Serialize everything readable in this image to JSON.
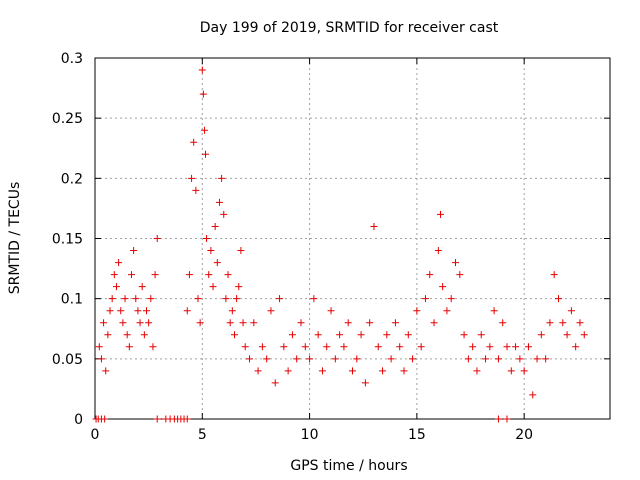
{
  "chart_data": {
    "type": "scatter",
    "title": "Day 199 of 2019, SRMTID for receiver cast",
    "xlabel": "GPS time / hours",
    "ylabel": "SRMTID / TECUs",
    "xlim": [
      0,
      24
    ],
    "ylim": [
      0,
      0.3
    ],
    "x_ticks": [
      0,
      5,
      10,
      15,
      20
    ],
    "y_ticks": [
      0,
      0.05,
      0.1,
      0.15,
      0.2,
      0.25,
      0.3
    ],
    "x_tick_labels": [
      "0",
      "5",
      "10",
      "15",
      "20"
    ],
    "y_tick_labels": [
      "0",
      "0.05",
      "0.1",
      "0.15",
      "0.2",
      "0.25",
      "0.3"
    ],
    "grid": true,
    "marker": "plus",
    "color": "#e60000",
    "series": [
      {
        "name": "SRMTID",
        "points": [
          [
            0.05,
            0
          ],
          [
            0.15,
            0
          ],
          [
            0.3,
            0
          ],
          [
            0.45,
            0
          ],
          [
            2.9,
            0
          ],
          [
            3.3,
            0
          ],
          [
            3.5,
            0
          ],
          [
            3.7,
            0
          ],
          [
            3.85,
            0
          ],
          [
            4.0,
            0
          ],
          [
            4.15,
            0
          ],
          [
            4.3,
            0
          ],
          [
            18.8,
            0
          ],
          [
            19.2,
            0
          ],
          [
            0.2,
            0.06
          ],
          [
            0.3,
            0.05
          ],
          [
            0.4,
            0.08
          ],
          [
            0.5,
            0.04
          ],
          [
            0.6,
            0.07
          ],
          [
            0.7,
            0.09
          ],
          [
            0.8,
            0.1
          ],
          [
            0.9,
            0.12
          ],
          [
            1.0,
            0.11
          ],
          [
            1.1,
            0.13
          ],
          [
            1.2,
            0.09
          ],
          [
            1.3,
            0.08
          ],
          [
            1.4,
            0.1
          ],
          [
            1.5,
            0.07
          ],
          [
            1.6,
            0.06
          ],
          [
            1.7,
            0.12
          ],
          [
            1.8,
            0.14
          ],
          [
            1.9,
            0.1
          ],
          [
            2.0,
            0.09
          ],
          [
            2.1,
            0.08
          ],
          [
            2.2,
            0.11
          ],
          [
            2.3,
            0.07
          ],
          [
            2.4,
            0.09
          ],
          [
            2.5,
            0.08
          ],
          [
            2.6,
            0.1
          ],
          [
            2.7,
            0.06
          ],
          [
            2.8,
            0.12
          ],
          [
            2.9,
            0.15
          ],
          [
            4.3,
            0.09
          ],
          [
            4.4,
            0.12
          ],
          [
            4.5,
            0.2
          ],
          [
            4.6,
            0.23
          ],
          [
            4.7,
            0.19
          ],
          [
            4.8,
            0.1
          ],
          [
            4.9,
            0.08
          ],
          [
            5.0,
            0.29
          ],
          [
            5.05,
            0.27
          ],
          [
            5.1,
            0.24
          ],
          [
            5.15,
            0.22
          ],
          [
            5.2,
            0.15
          ],
          [
            5.3,
            0.12
          ],
          [
            5.4,
            0.14
          ],
          [
            5.5,
            0.11
          ],
          [
            5.6,
            0.16
          ],
          [
            5.7,
            0.13
          ],
          [
            5.8,
            0.18
          ],
          [
            5.9,
            0.2
          ],
          [
            6.0,
            0.17
          ],
          [
            6.1,
            0.1
          ],
          [
            6.2,
            0.12
          ],
          [
            6.3,
            0.08
          ],
          [
            6.4,
            0.09
          ],
          [
            6.5,
            0.07
          ],
          [
            6.6,
            0.1
          ],
          [
            6.7,
            0.11
          ],
          [
            6.8,
            0.14
          ],
          [
            6.9,
            0.08
          ],
          [
            7.0,
            0.06
          ],
          [
            7.2,
            0.05
          ],
          [
            7.4,
            0.08
          ],
          [
            7.6,
            0.04
          ],
          [
            7.8,
            0.06
          ],
          [
            8.0,
            0.05
          ],
          [
            8.2,
            0.09
          ],
          [
            8.4,
            0.03
          ],
          [
            8.6,
            0.1
          ],
          [
            8.8,
            0.06
          ],
          [
            9.0,
            0.04
          ],
          [
            9.2,
            0.07
          ],
          [
            9.4,
            0.05
          ],
          [
            9.6,
            0.08
          ],
          [
            9.8,
            0.06
          ],
          [
            10.0,
            0.05
          ],
          [
            10.2,
            0.1
          ],
          [
            10.4,
            0.07
          ],
          [
            10.6,
            0.04
          ],
          [
            10.8,
            0.06
          ],
          [
            11.0,
            0.09
          ],
          [
            11.2,
            0.05
          ],
          [
            11.4,
            0.07
          ],
          [
            11.6,
            0.06
          ],
          [
            11.8,
            0.08
          ],
          [
            12.0,
            0.04
          ],
          [
            12.2,
            0.05
          ],
          [
            12.4,
            0.07
          ],
          [
            12.6,
            0.03
          ],
          [
            12.8,
            0.08
          ],
          [
            13.0,
            0.16
          ],
          [
            13.2,
            0.06
          ],
          [
            13.4,
            0.04
          ],
          [
            13.6,
            0.07
          ],
          [
            13.8,
            0.05
          ],
          [
            14.0,
            0.08
          ],
          [
            14.2,
            0.06
          ],
          [
            14.4,
            0.04
          ],
          [
            14.6,
            0.07
          ],
          [
            14.8,
            0.05
          ],
          [
            15.0,
            0.09
          ],
          [
            15.2,
            0.06
          ],
          [
            15.4,
            0.1
          ],
          [
            15.6,
            0.12
          ],
          [
            15.8,
            0.08
          ],
          [
            16.0,
            0.14
          ],
          [
            16.1,
            0.17
          ],
          [
            16.2,
            0.11
          ],
          [
            16.4,
            0.09
          ],
          [
            16.6,
            0.1
          ],
          [
            16.8,
            0.13
          ],
          [
            17.0,
            0.12
          ],
          [
            17.2,
            0.07
          ],
          [
            17.4,
            0.05
          ],
          [
            17.6,
            0.06
          ],
          [
            17.8,
            0.04
          ],
          [
            18.0,
            0.07
          ],
          [
            18.2,
            0.05
          ],
          [
            18.4,
            0.06
          ],
          [
            18.6,
            0.09
          ],
          [
            18.8,
            0.05
          ],
          [
            19.0,
            0.08
          ],
          [
            19.2,
            0.06
          ],
          [
            19.4,
            0.04
          ],
          [
            19.6,
            0.06
          ],
          [
            19.8,
            0.05
          ],
          [
            20.0,
            0.04
          ],
          [
            20.2,
            0.06
          ],
          [
            20.4,
            0.02
          ],
          [
            20.6,
            0.05
          ],
          [
            20.8,
            0.07
          ],
          [
            21.0,
            0.05
          ],
          [
            21.2,
            0.08
          ],
          [
            21.4,
            0.12
          ],
          [
            21.6,
            0.1
          ],
          [
            21.8,
            0.08
          ],
          [
            22.0,
            0.07
          ],
          [
            22.2,
            0.09
          ],
          [
            22.4,
            0.06
          ],
          [
            22.6,
            0.08
          ],
          [
            22.8,
            0.07
          ]
        ]
      }
    ]
  }
}
